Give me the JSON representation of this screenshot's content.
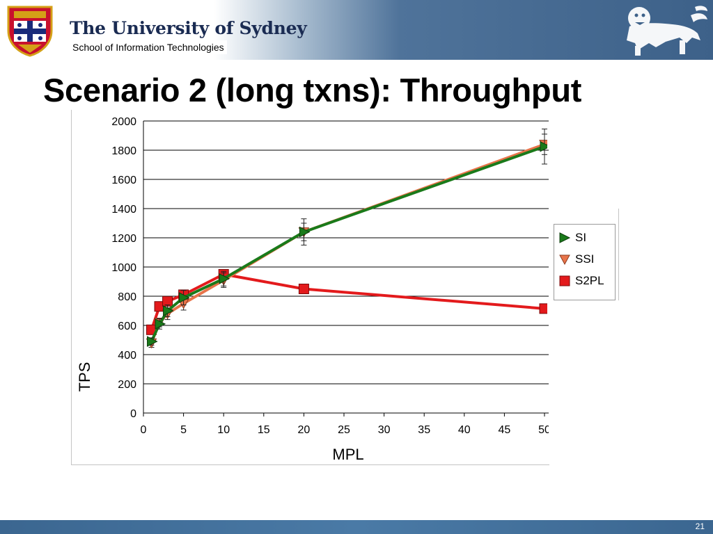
{
  "header": {
    "university": "The University of Sydney",
    "school": "School of Information Technologies",
    "crest_icon": "university-crest-icon",
    "lion_icon": "lion-emblem-icon"
  },
  "slide": {
    "title": "Scenario 2 (long txns): Throughput",
    "page_number": "21"
  },
  "chart_data": {
    "type": "line",
    "xlabel": "MPL",
    "ylabel": "TPS",
    "xlim": [
      0,
      50
    ],
    "ylim": [
      0,
      2000
    ],
    "x_ticks": [
      "0",
      "5",
      "10",
      "15",
      "20",
      "25",
      "30",
      "35",
      "40",
      "45",
      "50"
    ],
    "y_ticks": [
      "0",
      "200",
      "400",
      "600",
      "800",
      "1000",
      "1200",
      "1400",
      "1600",
      "1800",
      "2000"
    ],
    "grid": "horizontal",
    "legend_position": "right",
    "series": [
      {
        "name": "S2PL",
        "color": "#e31a1c",
        "marker": "square",
        "x": [
          1,
          2,
          3,
          5,
          10,
          20,
          50
        ],
        "y": [
          570,
          730,
          765,
          810,
          950,
          850,
          715
        ],
        "err": [
          15,
          25,
          20,
          20,
          25,
          25,
          20
        ]
      },
      {
        "name": "SSI",
        "color": "#e8744a",
        "marker": "triangle-down",
        "x": [
          1,
          2,
          3,
          5,
          10,
          20,
          50
        ],
        "y": [
          480,
          620,
          680,
          750,
          910,
          1240,
          1840
        ],
        "err": [
          30,
          30,
          40,
          45,
          50,
          60,
          70
        ]
      },
      {
        "name": "SI",
        "color": "#1a7a1a",
        "marker": "triangle-right",
        "x": [
          1,
          2,
          3,
          5,
          10,
          20,
          50
        ],
        "y": [
          490,
          610,
          700,
          790,
          920,
          1240,
          1825
        ],
        "err": [
          25,
          35,
          40,
          50,
          50,
          90,
          120
        ]
      }
    ]
  }
}
